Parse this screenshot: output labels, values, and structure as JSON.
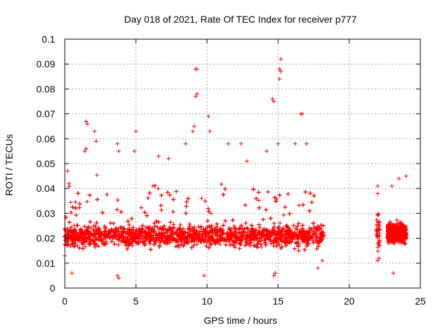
{
  "chart_data": {
    "type": "scatter",
    "title": "Day 018 of 2021, Rate Of TEC Index for receiver p777",
    "xlabel": "GPS time / hours",
    "ylabel": "ROTI / TECUs",
    "xlim": [
      0,
      25
    ],
    "ylim": [
      0,
      0.1
    ],
    "xticks": [
      "0",
      "5",
      "10",
      "15",
      "20",
      "25"
    ],
    "yticks": [
      "0",
      "0.01",
      "0.02",
      "0.03",
      "0.04",
      "0.05",
      "0.06",
      "0.07",
      "0.08",
      "0.09",
      "0.1"
    ],
    "grid": true,
    "legend": "none",
    "marker": "plus",
    "color": "#ff0000",
    "outliers": [
      [
        1.5,
        0.067
      ],
      [
        1.6,
        0.066
      ],
      [
        1.5,
        0.056
      ],
      [
        1.4,
        0.055
      ],
      [
        2.1,
        0.063
      ],
      [
        2.2,
        0.059
      ],
      [
        3.7,
        0.058
      ],
      [
        3.8,
        0.055
      ],
      [
        4.9,
        0.055
      ],
      [
        5.0,
        0.063
      ],
      [
        6.6,
        0.053
      ],
      [
        8.5,
        0.058
      ],
      [
        9.0,
        0.063
      ],
      [
        9.1,
        0.065
      ],
      [
        9.2,
        0.077
      ],
      [
        9.3,
        0.078
      ],
      [
        9.2,
        0.088
      ],
      [
        9.3,
        0.088
      ],
      [
        10.1,
        0.069
      ],
      [
        10.2,
        0.063
      ],
      [
        11.5,
        0.058
      ],
      [
        12.4,
        0.058
      ],
      [
        14.6,
        0.076
      ],
      [
        14.7,
        0.075
      ],
      [
        15.2,
        0.092
      ],
      [
        15.1,
        0.088
      ],
      [
        15.2,
        0.087
      ],
      [
        15.1,
        0.084
      ],
      [
        15.0,
        0.058
      ],
      [
        16.6,
        0.07
      ],
      [
        16.7,
        0.07
      ],
      [
        16.2,
        0.058
      ],
      [
        17.0,
        0.058
      ],
      [
        14.2,
        0.055
      ],
      [
        12.8,
        0.051
      ],
      [
        7.3,
        0.052
      ],
      [
        0.2,
        0.047
      ],
      [
        0.3,
        0.042
      ],
      [
        22.0,
        0.041
      ],
      [
        22.0,
        0.038
      ],
      [
        24.0,
        0.045
      ],
      [
        23.5,
        0.044
      ],
      [
        23.0,
        0.041
      ],
      [
        3.8,
        0.004
      ],
      [
        3.7,
        0.005
      ],
      [
        0.5,
        0.006
      ],
      [
        14.7,
        0.005
      ],
      [
        14.8,
        0.006
      ],
      [
        9.8,
        0.005
      ],
      [
        23.1,
        0.006
      ],
      [
        22.0,
        0.011
      ],
      [
        22.1,
        0.012
      ],
      [
        0.0,
        0.013
      ],
      [
        17.8,
        0.008
      ],
      [
        18.1,
        0.011
      ]
    ]
  }
}
